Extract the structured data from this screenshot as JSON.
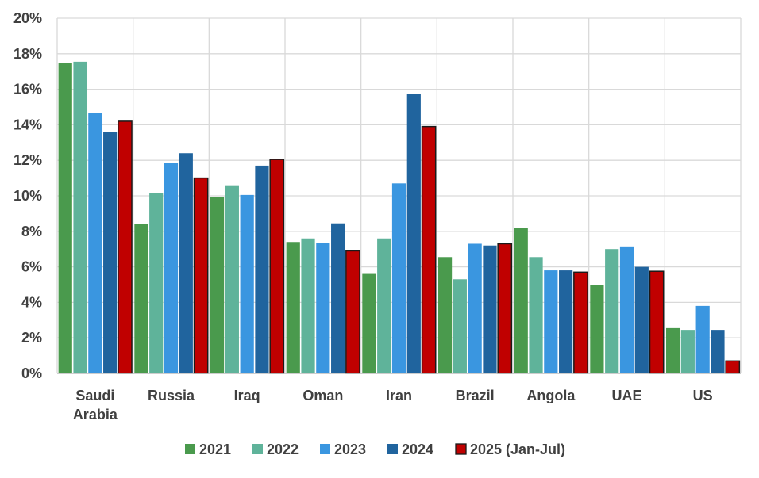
{
  "chart_data": {
    "type": "bar",
    "title": "",
    "xlabel": "",
    "ylabel": "",
    "ylim": [
      0,
      20
    ],
    "yticks": [
      "0%",
      "2%",
      "4%",
      "6%",
      "8%",
      "10%",
      "12%",
      "14%",
      "16%",
      "18%",
      "20%"
    ],
    "grid": true,
    "legend_position": "bottom",
    "categories": [
      [
        "Saudi",
        "Arabia"
      ],
      [
        "Russia"
      ],
      [
        "Iraq"
      ],
      [
        "Oman"
      ],
      [
        "Iran"
      ],
      [
        "Brazil"
      ],
      [
        "Angola"
      ],
      [
        "UAE"
      ],
      [
        "US"
      ]
    ],
    "series": [
      {
        "name": "2021",
        "color": "#4a9a4d",
        "outline": false,
        "values": [
          17.5,
          8.4,
          9.95,
          7.4,
          5.6,
          6.55,
          8.2,
          5.0,
          2.55
        ]
      },
      {
        "name": "2022",
        "color": "#5fb39a",
        "outline": false,
        "values": [
          17.55,
          10.15,
          10.55,
          7.6,
          7.6,
          5.3,
          6.55,
          7.0,
          2.45
        ]
      },
      {
        "name": "2023",
        "color": "#3a96e0",
        "outline": false,
        "values": [
          14.65,
          11.85,
          10.05,
          7.35,
          10.7,
          7.3,
          5.8,
          7.15,
          3.8
        ]
      },
      {
        "name": "2024",
        "color": "#20649e",
        "outline": false,
        "values": [
          13.6,
          12.4,
          11.7,
          8.45,
          15.75,
          7.2,
          5.8,
          6.0,
          2.45
        ]
      },
      {
        "name": "2025 (Jan-Jul)",
        "color": "#c00000",
        "outline": true,
        "values": [
          14.2,
          11.0,
          12.05,
          6.9,
          13.9,
          7.3,
          5.7,
          5.75,
          0.7
        ]
      }
    ]
  }
}
